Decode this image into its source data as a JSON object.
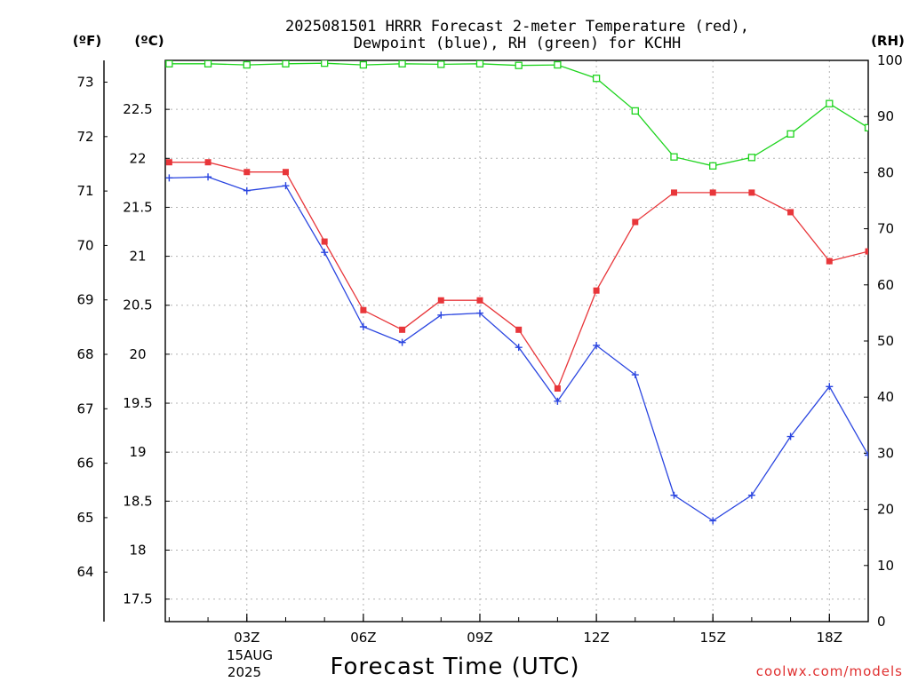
{
  "title_line1": "2025081501 HRRR Forecast 2-meter Temperature (red),",
  "title_line2": "Dewpoint (blue), RH (green) for KCHH",
  "unit_f": "(ºF)",
  "unit_c": "(ºC)",
  "unit_rh": "(RH)",
  "date_line1": "15AUG",
  "date_line2": "2025",
  "credit": "coolwx.com/models",
  "colors": {
    "temperature": "#e8363a",
    "dewpoint": "#2a45e0",
    "rh": "#1ed41e",
    "grid": "#b4b4b4",
    "credit": "#e03030"
  },
  "chart_data": {
    "type": "line",
    "title": "2025081501 HRRR Forecast 2-meter Temperature (red), Dewpoint (blue), RH (green) for KCHH",
    "xlabel": "Forecast Time (UTC)",
    "x_unit": "forecast hour (UTC), 15 Aug 2025",
    "x": [
      1,
      2,
      3,
      4,
      5,
      6,
      7,
      8,
      9,
      10,
      11,
      12,
      13,
      14,
      15,
      16,
      17,
      18,
      19
    ],
    "xlim": [
      0.9,
      19
    ],
    "x_ticks": [
      {
        "x": 3,
        "label": "03Z"
      },
      {
        "x": 6,
        "label": "06Z"
      },
      {
        "x": 9,
        "label": "09Z"
      },
      {
        "x": 12,
        "label": "12Z"
      },
      {
        "x": 15,
        "label": "15Z"
      },
      {
        "x": 18,
        "label": "18Z"
      }
    ],
    "y_left_celsius": {
      "lim": [
        17.27,
        23.0
      ],
      "ticks": [
        17.5,
        18,
        18.5,
        19,
        19.5,
        20,
        20.5,
        21,
        21.5,
        22,
        22.5
      ]
    },
    "y_left_fahrenheit": {
      "lim": [
        63.09,
        73.4
      ],
      "ticks": [
        64,
        65,
        66,
        67,
        68,
        69,
        70,
        71,
        72,
        73
      ]
    },
    "y_right_rh": {
      "lim": [
        0,
        100
      ],
      "ticks": [
        0,
        10,
        20,
        30,
        40,
        50,
        60,
        70,
        80,
        90,
        100
      ]
    },
    "grid": true,
    "series": [
      {
        "name": "Temperature",
        "axis": "celsius",
        "marker": "filled-square",
        "values": [
          21.96,
          21.96,
          21.86,
          21.86,
          21.15,
          20.45,
          20.25,
          20.55,
          20.55,
          20.25,
          19.65,
          20.65,
          21.35,
          21.65,
          21.65,
          21.65,
          21.45,
          20.95,
          21.05
        ]
      },
      {
        "name": "Dewpoint",
        "axis": "celsius",
        "marker": "plus",
        "values": [
          21.8,
          21.81,
          21.67,
          21.72,
          21.04,
          20.28,
          20.12,
          20.4,
          20.42,
          20.07,
          19.52,
          20.09,
          19.79,
          18.56,
          18.3,
          18.56,
          19.16,
          19.67,
          18.97
        ]
      },
      {
        "name": "RH",
        "axis": "rh",
        "marker": "open-square",
        "values": [
          99.4,
          99.4,
          99.2,
          99.4,
          99.5,
          99.2,
          99.4,
          99.3,
          99.4,
          99.1,
          99.2,
          96.8,
          91.0,
          82.8,
          81.2,
          82.7,
          86.9,
          92.3,
          88.0
        ]
      }
    ]
  }
}
